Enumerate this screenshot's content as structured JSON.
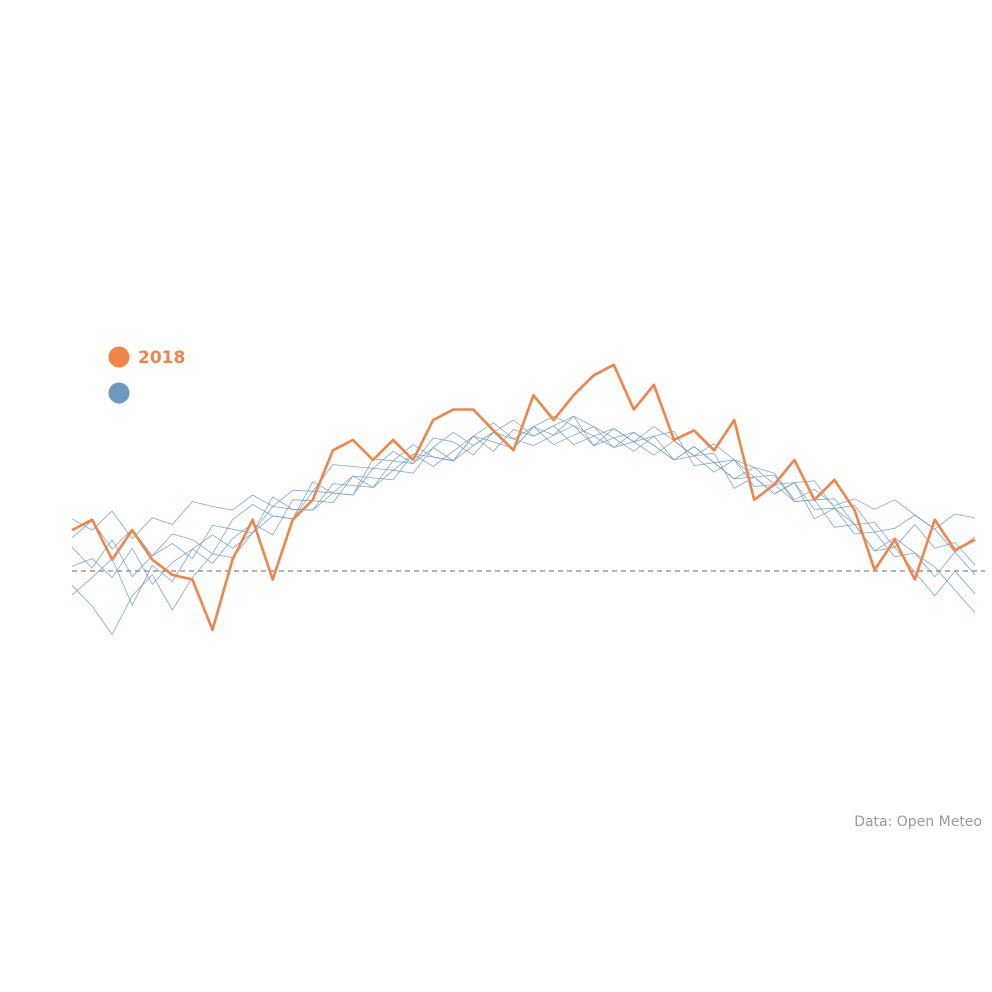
{
  "chart_data": {
    "type": "line",
    "caption": "Data: Open Meteo",
    "xlim": [
      1,
      365
    ],
    "ylim": [
      -20,
      40
    ],
    "hline": 0,
    "x": [
      1,
      9,
      17,
      25,
      33,
      41,
      49,
      57,
      65,
      73,
      81,
      89,
      97,
      105,
      113,
      121,
      129,
      137,
      145,
      153,
      161,
      169,
      177,
      185,
      193,
      201,
      209,
      217,
      225,
      233,
      241,
      249,
      257,
      265,
      273,
      281,
      289,
      297,
      305,
      313,
      321,
      329,
      337,
      345,
      353,
      361
    ],
    "series": [
      {
        "color": "#6e99bf",
        "values": [
          -1.5,
          -3.7,
          -6.7,
          -2.6,
          -0.4,
          -4.1,
          -0.7,
          1.8,
          1.4,
          4.0,
          5.8,
          5.5,
          8.4,
          8.2,
          8.0,
          11.8,
          11.6,
          11.3,
          13.0,
          11.6,
          14.2,
          15.6,
          13.9,
          15.2,
          13.3,
          14.3,
          15.2,
          13.0,
          13.6,
          14.2,
          11.7,
          12.1,
          12.4,
          8.7,
          9.9,
          8.1,
          9.3,
          5.5,
          6.6,
          4.9,
          2.1,
          2.5,
          -0.1,
          -2.6,
          0.0,
          -2.4
        ]
      },
      {
        "color": "#6e99bf",
        "values": [
          5.5,
          4.3,
          6.3,
          3.4,
          5.6,
          4.9,
          7.3,
          6.8,
          6.4,
          8.0,
          6.8,
          8.5,
          8.4,
          11.2,
          11.0,
          10.8,
          12.6,
          11.3,
          14.0,
          13.6,
          12.2,
          14.6,
          15.9,
          14.2,
          15.3,
          16.3,
          13.2,
          15.0,
          13.6,
          15.2,
          13.7,
          12.1,
          13.4,
          11.7,
          10.9,
          10.3,
          7.5,
          8.6,
          6.9,
          7.6,
          6.5,
          7.5,
          5.9,
          4.4,
          6.0,
          5.6
        ]
      },
      {
        "color": "#6e99bf",
        "values": [
          2.5,
          0.3,
          3.3,
          -0.6,
          1.6,
          2.9,
          1.3,
          4.8,
          4.4,
          4.0,
          7.8,
          6.5,
          6.4,
          9.2,
          9.0,
          8.8,
          11.6,
          13.3,
          12.0,
          11.6,
          14.2,
          13.6,
          12.9,
          15.2,
          16.3,
          15.3,
          14.2,
          13.0,
          14.6,
          13.2,
          11.7,
          13.1,
          11.4,
          9.7,
          9.9,
          10.1,
          7.3,
          7.5,
          7.6,
          4.9,
          5.1,
          2.5,
          4.9,
          2.4,
          3.0,
          0.6
        ]
      },
      {
        "color": "#6e99bf",
        "values": [
          0.5,
          1.3,
          -0.7,
          2.4,
          -1.4,
          0.9,
          2.3,
          0.8,
          3.4,
          5.0,
          3.8,
          7.5,
          7.4,
          7.2,
          10.0,
          9.8,
          9.6,
          12.3,
          11.0,
          12.6,
          14.2,
          12.6,
          14.9,
          14.2,
          15.3,
          13.3,
          14.2,
          15.0,
          13.6,
          12.2,
          13.7,
          12.1,
          10.4,
          11.7,
          9.9,
          8.1,
          9.3,
          6.5,
          6.6,
          3.9,
          4.1,
          1.5,
          1.9,
          -0.6,
          2.0,
          -0.4
        ]
      },
      {
        "color": "#6e99bf",
        "values": [
          3.5,
          5.3,
          2.3,
          4.4,
          1.6,
          3.9,
          3.3,
          1.8,
          5.4,
          7.0,
          5.8,
          5.5,
          9.4,
          8.2,
          8.0,
          10.8,
          10.6,
          10.3,
          13.0,
          14.6,
          13.2,
          14.6,
          12.9,
          15.2,
          14.3,
          16.3,
          15.2,
          14.0,
          12.6,
          14.2,
          14.7,
          11.1,
          11.4,
          11.7,
          8.9,
          9.1,
          9.3,
          9.5,
          6.6,
          6.9,
          4.1,
          4.5,
          5.9,
          4.4,
          2.0,
          3.6
        ]
      },
      {
        "color": "#6e99bf",
        "values": [
          -2.5,
          -0.7,
          1.3,
          -3.6,
          0.6,
          -1.1,
          2.3,
          3.8,
          2.4,
          4.0,
          6.8,
          6.5,
          6.4,
          8.2,
          10.0,
          8.8,
          10.6,
          12.3,
          12.0,
          11.6,
          13.2,
          14.6,
          13.9,
          13.2,
          14.3,
          15.3,
          13.2,
          14.0,
          14.6,
          13.2,
          11.7,
          13.1,
          11.4,
          9.7,
          10.9,
          9.1,
          7.3,
          7.5,
          4.6,
          4.9,
          2.1,
          3.5,
          1.9,
          0.4,
          -2.0,
          -4.4
        ]
      },
      {
        "name": "2018",
        "color": "#f08449",
        "values": [
          4.3,
          5.4,
          1.2,
          4.3,
          1.2,
          -0.4,
          -0.9,
          -6.2,
          1.2,
          5.4,
          -0.9,
          5.4,
          7.5,
          12.7,
          13.8,
          11.7,
          13.8,
          11.7,
          15.9,
          17.0,
          17.0,
          14.8,
          12.7,
          18.5,
          15.9,
          18.5,
          20.6,
          21.7,
          17.0,
          19.6,
          13.8,
          14.8,
          12.7,
          15.9,
          7.5,
          9.1,
          11.7,
          7.5,
          9.6,
          6.4,
          0.1,
          3.3,
          -0.9,
          5.4,
          2.2,
          3.3
        ]
      }
    ]
  }
}
